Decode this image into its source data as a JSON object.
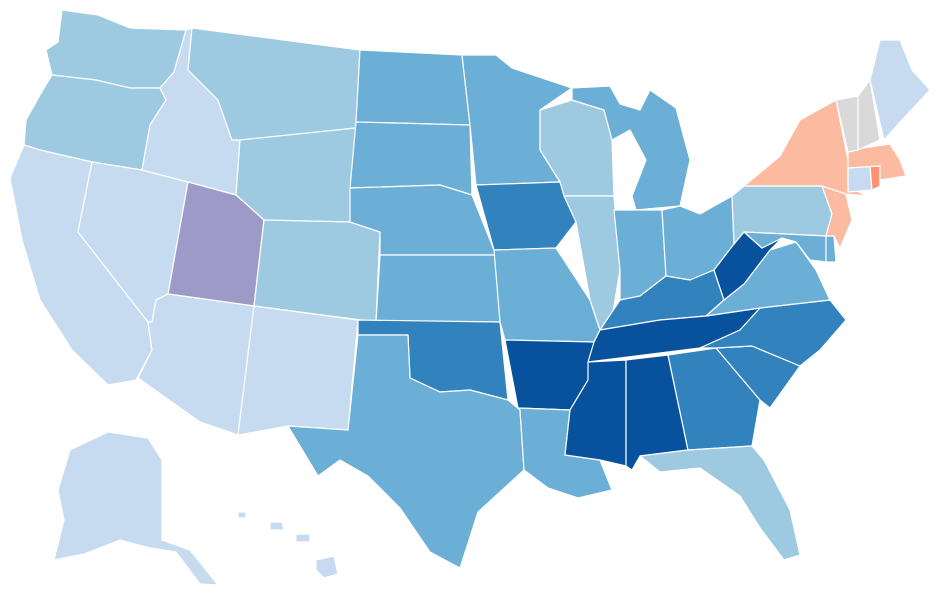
{
  "map": {
    "type": "choropleth",
    "region": "United States",
    "palette": {
      "c0": "#c6dbef",
      "c1": "#9ecae1",
      "c2": "#6baed6",
      "c3": "#3182bd",
      "c4": "#08519c",
      "purple": "#9e9ac8",
      "orange_light": "#fcbba1",
      "orange": "#fc9272",
      "grey": "#d9d9d9"
    },
    "states": [
      {
        "code": "WA",
        "color": "c1"
      },
      {
        "code": "OR",
        "color": "c1"
      },
      {
        "code": "CA",
        "color": "c0"
      },
      {
        "code": "NV",
        "color": "c0"
      },
      {
        "code": "ID",
        "color": "c0"
      },
      {
        "code": "MT",
        "color": "c1"
      },
      {
        "code": "WY",
        "color": "c1"
      },
      {
        "code": "UT",
        "color": "purple"
      },
      {
        "code": "AZ",
        "color": "c0"
      },
      {
        "code": "CO",
        "color": "c1"
      },
      {
        "code": "NM",
        "color": "c0"
      },
      {
        "code": "ND",
        "color": "c2"
      },
      {
        "code": "SD",
        "color": "c2"
      },
      {
        "code": "NE",
        "color": "c2"
      },
      {
        "code": "KS",
        "color": "c2"
      },
      {
        "code": "OK",
        "color": "c3"
      },
      {
        "code": "TX",
        "color": "c2"
      },
      {
        "code": "MN",
        "color": "c2"
      },
      {
        "code": "IA",
        "color": "c3"
      },
      {
        "code": "MO",
        "color": "c2"
      },
      {
        "code": "AR",
        "color": "c4"
      },
      {
        "code": "LA",
        "color": "c2"
      },
      {
        "code": "WI",
        "color": "c1"
      },
      {
        "code": "IL",
        "color": "c1"
      },
      {
        "code": "MI",
        "color": "c2"
      },
      {
        "code": "IN",
        "color": "c2"
      },
      {
        "code": "OH",
        "color": "c2"
      },
      {
        "code": "KY",
        "color": "c3"
      },
      {
        "code": "TN",
        "color": "c4"
      },
      {
        "code": "MS",
        "color": "c4"
      },
      {
        "code": "AL",
        "color": "c4"
      },
      {
        "code": "GA",
        "color": "c3"
      },
      {
        "code": "FL",
        "color": "c1"
      },
      {
        "code": "SC",
        "color": "c3"
      },
      {
        "code": "NC",
        "color": "c3"
      },
      {
        "code": "VA",
        "color": "c2"
      },
      {
        "code": "WV",
        "color": "c4"
      },
      {
        "code": "PA",
        "color": "c1"
      },
      {
        "code": "NY",
        "color": "orange_light"
      },
      {
        "code": "NJ",
        "color": "orange_light"
      },
      {
        "code": "MD",
        "color": "c2"
      },
      {
        "code": "DE",
        "color": "c2"
      },
      {
        "code": "CT",
        "color": "c0"
      },
      {
        "code": "RI",
        "color": "orange"
      },
      {
        "code": "MA",
        "color": "orange_light"
      },
      {
        "code": "VT",
        "color": "grey"
      },
      {
        "code": "NH",
        "color": "grey"
      },
      {
        "code": "ME",
        "color": "c0"
      },
      {
        "code": "AK",
        "color": "c0"
      },
      {
        "code": "HI",
        "color": "c0"
      }
    ]
  }
}
